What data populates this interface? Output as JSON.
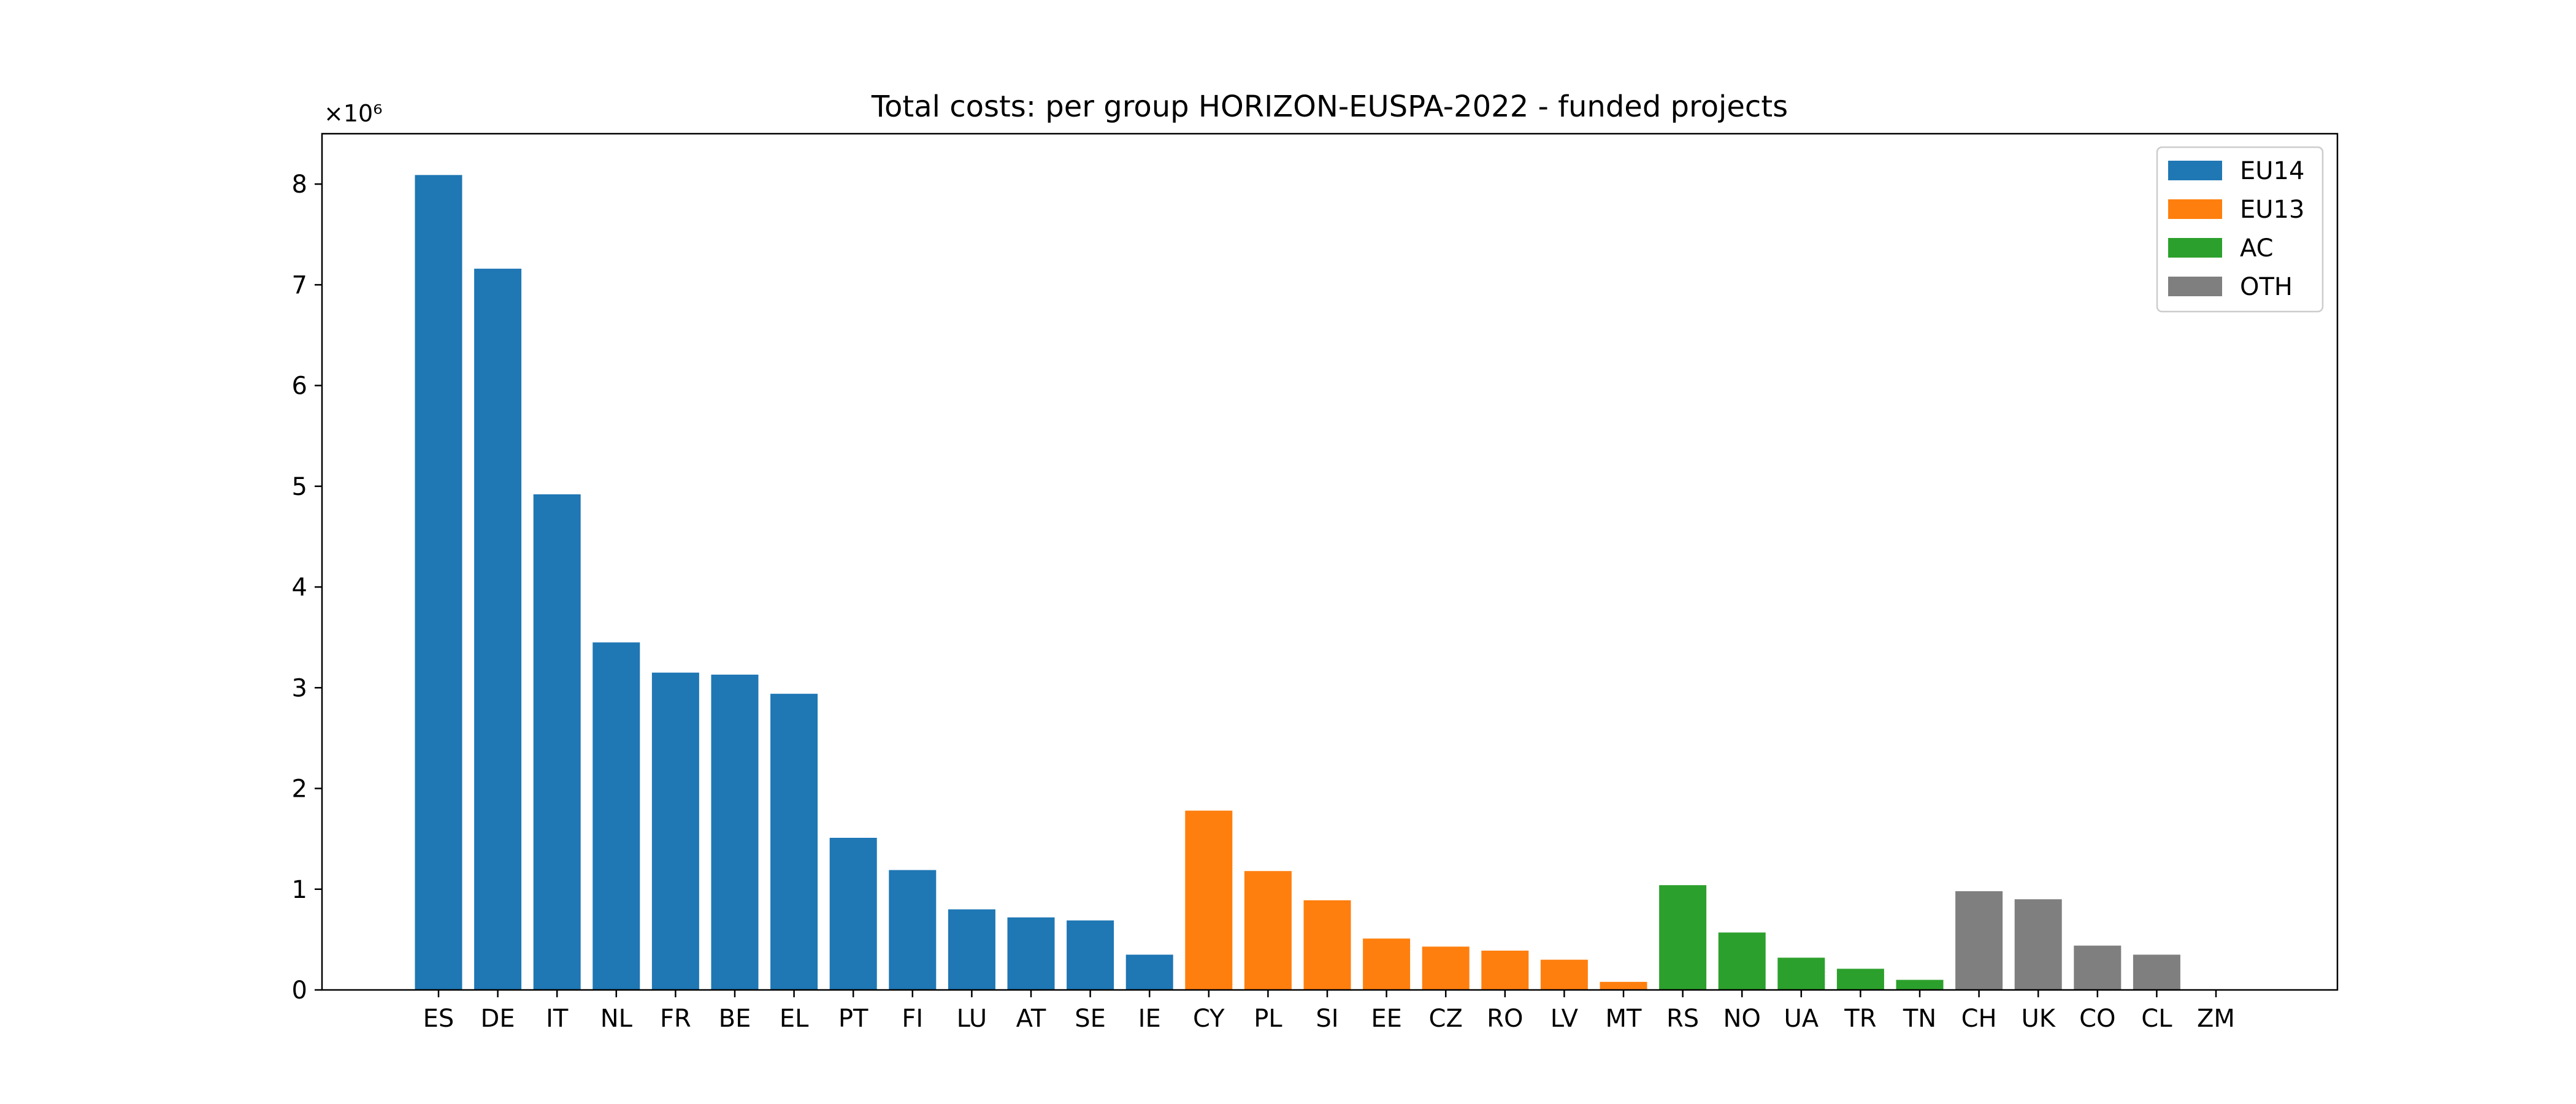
{
  "chart_data": {
    "type": "bar",
    "title": "Total costs: per group HORIZON-EUSPA-2022 - funded projects",
    "xlabel": "",
    "ylabel": "",
    "y_scale_label": "×10⁶",
    "y_scale": 1000000,
    "ylim": [
      0,
      8500000
    ],
    "yticks": [
      0,
      1000000,
      2000000,
      3000000,
      4000000,
      5000000,
      6000000,
      7000000,
      8000000
    ],
    "ytick_labels": [
      "0",
      "1",
      "2",
      "3",
      "4",
      "5",
      "6",
      "7",
      "8"
    ],
    "grid": false,
    "legend_position": "top-right",
    "groups": [
      {
        "name": "EU14",
        "color": "#1f77b4"
      },
      {
        "name": "EU13",
        "color": "#ff7f0e"
      },
      {
        "name": "AC",
        "color": "#2ca02c"
      },
      {
        "name": "OTH",
        "color": "#7f7f7f"
      }
    ],
    "categories": [
      "ES",
      "DE",
      "IT",
      "NL",
      "FR",
      "BE",
      "EL",
      "PT",
      "FI",
      "LU",
      "AT",
      "SE",
      "IE",
      "CY",
      "PL",
      "SI",
      "EE",
      "CZ",
      "RO",
      "LV",
      "MT",
      "RS",
      "NO",
      "UA",
      "TR",
      "TN",
      "CH",
      "UK",
      "CO",
      "CL",
      "ZM"
    ],
    "category_groups": [
      "EU14",
      "EU14",
      "EU14",
      "EU14",
      "EU14",
      "EU14",
      "EU14",
      "EU14",
      "EU14",
      "EU14",
      "EU14",
      "EU14",
      "EU14",
      "EU13",
      "EU13",
      "EU13",
      "EU13",
      "EU13",
      "EU13",
      "EU13",
      "EU13",
      "AC",
      "AC",
      "AC",
      "AC",
      "AC",
      "OTH",
      "OTH",
      "OTH",
      "OTH",
      "OTH"
    ],
    "values": [
      8090000,
      7160000,
      4920000,
      3450000,
      3150000,
      3130000,
      2940000,
      1510000,
      1190000,
      800000,
      720000,
      690000,
      350000,
      1780000,
      1180000,
      890000,
      510000,
      430000,
      390000,
      300000,
      80000,
      1040000,
      570000,
      320000,
      210000,
      100000,
      980000,
      900000,
      440000,
      350000,
      0
    ]
  }
}
